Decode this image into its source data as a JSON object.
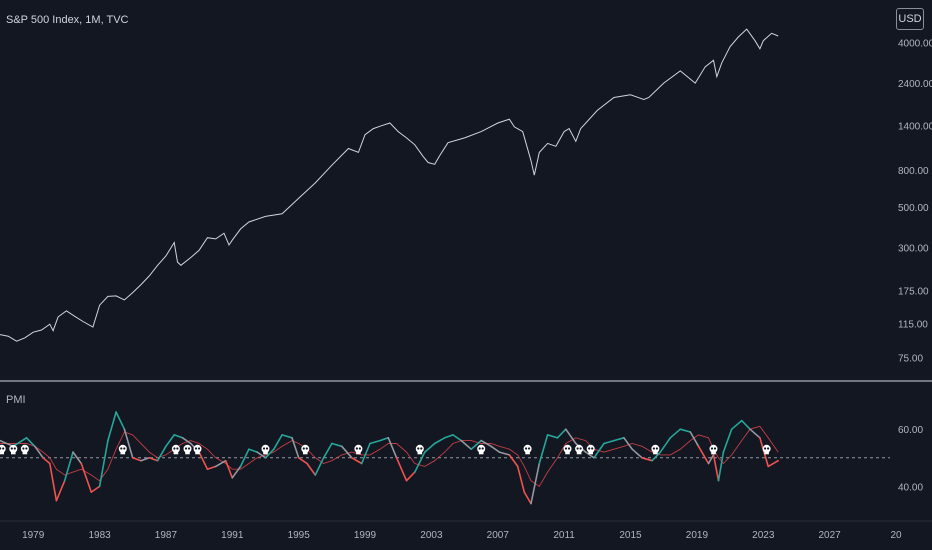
{
  "header": {
    "title": "S&P 500 Index, 1M, TVC"
  },
  "currency_button": {
    "label": "USD"
  },
  "indicator": {
    "title": "PMI"
  },
  "colors": {
    "background": "#131722",
    "price_line": "#d1d4dc",
    "pmi_up": "#26a69a",
    "pmi_down": "#ef5350",
    "pmi_neutral": "#9598a1",
    "pmi_ma": "#e0454a",
    "threshold": "#9598a1",
    "grid_text": "#b2b5be"
  },
  "chart_data": [
    {
      "type": "line",
      "name": "",
      "scale": "log",
      "x": [
        1977.0,
        1977.5,
        1978.0,
        1978.5,
        1979.0,
        1979.5,
        1980.0,
        1980.2,
        1980.5,
        1981.0,
        1981.5,
        1982.0,
        1982.6,
        1983.0,
        1983.5,
        1984.0,
        1984.5,
        1985.0,
        1985.5,
        1986.0,
        1986.5,
        1987.0,
        1987.5,
        1987.7,
        1987.9,
        1988.5,
        1989.0,
        1989.5,
        1990.0,
        1990.5,
        1990.8,
        1991.0,
        1991.5,
        1992.0,
        1993.0,
        1994.0,
        1995.0,
        1996.0,
        1997.0,
        1998.0,
        1998.6,
        1999.0,
        1999.5,
        2000.0,
        2000.5,
        2001.0,
        2001.5,
        2002.0,
        2002.5,
        2002.8,
        2003.2,
        2003.5,
        2004.0,
        2005.0,
        2006.0,
        2007.0,
        2007.7,
        2008.0,
        2008.5,
        2009.0,
        2009.2,
        2009.5,
        2010.0,
        2010.5,
        2011.0,
        2011.3,
        2011.7,
        2012.0,
        2013.0,
        2014.0,
        2015.0,
        2015.8,
        2016.1,
        2017.0,
        2018.0,
        2018.9,
        2019.5,
        2020.0,
        2020.2,
        2020.5,
        2021.0,
        2021.5,
        2022.0,
        2022.5,
        2022.8,
        2023.0,
        2023.5,
        2023.9
      ],
      "values": [
        100,
        98,
        92,
        96,
        103,
        106,
        114,
        105,
        125,
        135,
        126,
        118,
        110,
        145,
        162,
        163,
        155,
        170,
        188,
        210,
        240,
        270,
        320,
        250,
        240,
        265,
        290,
        340,
        335,
        360,
        310,
        330,
        380,
        415,
        445,
        460,
        560,
        680,
        850,
        1050,
        1000,
        1250,
        1350,
        1400,
        1450,
        1300,
        1200,
        1100,
        950,
        880,
        860,
        960,
        1130,
        1200,
        1300,
        1450,
        1520,
        1380,
        1300,
        900,
        750,
        1000,
        1120,
        1080,
        1300,
        1350,
        1150,
        1350,
        1700,
        2000,
        2070,
        1950,
        2000,
        2400,
        2800,
        2400,
        2950,
        3200,
        2600,
        3100,
        3800,
        4300,
        4750,
        4100,
        3700,
        4100,
        4500,
        4350
      ],
      "y_ticks": [
        "75.00",
        "115.00",
        "175.00",
        "300.00",
        "500.00",
        "800.00",
        "1400.00",
        "2400.00",
        "4000.00"
      ]
    },
    {
      "type": "line",
      "name": "",
      "threshold": 50,
      "y_ticks": [
        "40.00",
        "60.00"
      ],
      "x_ticks": [
        "1979",
        "1983",
        "1987",
        "1991",
        "1995",
        "1999",
        "2003",
        "2007",
        "2011",
        "2015",
        "2019",
        "2023",
        "2027",
        "20"
      ],
      "x": [
        1977.0,
        1977.8,
        1978.6,
        1979.1,
        1979.6,
        1980.0,
        1980.4,
        1980.9,
        1981.4,
        1981.9,
        1982.5,
        1983.0,
        1983.5,
        1984.0,
        1984.5,
        1985.0,
        1985.5,
        1986.0,
        1986.5,
        1987.0,
        1987.5,
        1988.0,
        1988.5,
        1989.0,
        1989.5,
        1990.0,
        1990.6,
        1991.0,
        1991.5,
        1992.0,
        1992.5,
        1993.0,
        1993.5,
        1994.0,
        1994.6,
        1995.0,
        1995.5,
        1996.0,
        1996.5,
        1997.0,
        1997.6,
        1998.2,
        1998.8,
        1999.3,
        1999.9,
        2000.4,
        2000.9,
        2001.5,
        2002.0,
        2002.6,
        2003.2,
        2003.8,
        2004.3,
        2004.8,
        2005.4,
        2006.0,
        2006.6,
        2007.1,
        2007.7,
        2008.2,
        2008.6,
        2009.0,
        2009.5,
        2010.0,
        2010.6,
        2011.1,
        2011.7,
        2012.3,
        2012.8,
        2013.4,
        2014.0,
        2014.6,
        2015.1,
        2015.7,
        2016.3,
        2016.8,
        2017.4,
        2018.0,
        2018.6,
        2019.1,
        2019.7,
        2020.0,
        2020.3,
        2020.6,
        2021.1,
        2021.7,
        2022.2,
        2022.8,
        2023.3,
        2023.9
      ],
      "values": [
        56,
        54,
        57,
        54,
        50,
        48,
        35,
        42,
        52,
        48,
        38,
        40,
        56,
        66,
        60,
        50,
        49,
        50,
        49,
        54,
        58,
        57,
        55,
        52,
        46,
        47,
        49,
        43,
        47,
        53,
        52,
        50,
        53,
        58,
        57,
        50,
        48,
        44,
        50,
        55,
        54,
        50,
        48,
        55,
        56,
        57,
        50,
        42,
        45,
        52,
        55,
        57,
        58,
        56,
        53,
        56,
        54,
        52,
        51,
        47,
        38,
        34,
        48,
        58,
        57,
        60,
        55,
        52,
        50,
        55,
        56,
        57,
        53,
        50,
        49,
        52,
        57,
        60,
        59,
        54,
        48,
        51,
        42,
        52,
        60,
        63,
        60,
        57,
        47,
        49
      ],
      "moving_average": [
        55,
        55,
        55,
        54,
        52,
        50,
        46,
        44,
        45,
        46,
        44,
        42,
        46,
        53,
        59,
        58,
        55,
        52,
        50,
        51,
        53,
        55,
        56,
        55,
        53,
        50,
        48,
        46,
        46,
        48,
        50,
        51,
        52,
        54,
        56,
        55,
        53,
        50,
        48,
        49,
        51,
        52,
        51,
        51,
        53,
        55,
        55,
        52,
        48,
        47,
        49,
        52,
        55,
        56,
        56,
        55,
        55,
        54,
        53,
        51,
        47,
        42,
        40,
        45,
        50,
        55,
        57,
        56,
        53,
        52,
        53,
        54,
        55,
        54,
        52,
        51,
        51,
        53,
        56,
        58,
        57,
        53,
        50,
        48,
        51,
        56,
        60,
        61,
        57,
        52
      ],
      "signal_marker_x": [
        1977.1,
        1977.8,
        1978.5,
        1984.4,
        1987.6,
        1988.3,
        1988.9,
        1993.0,
        1995.4,
        1998.6,
        2002.3,
        2006.0,
        2008.8,
        2011.2,
        2011.9,
        2012.6,
        2016.5,
        2020.0,
        2023.2
      ]
    }
  ]
}
